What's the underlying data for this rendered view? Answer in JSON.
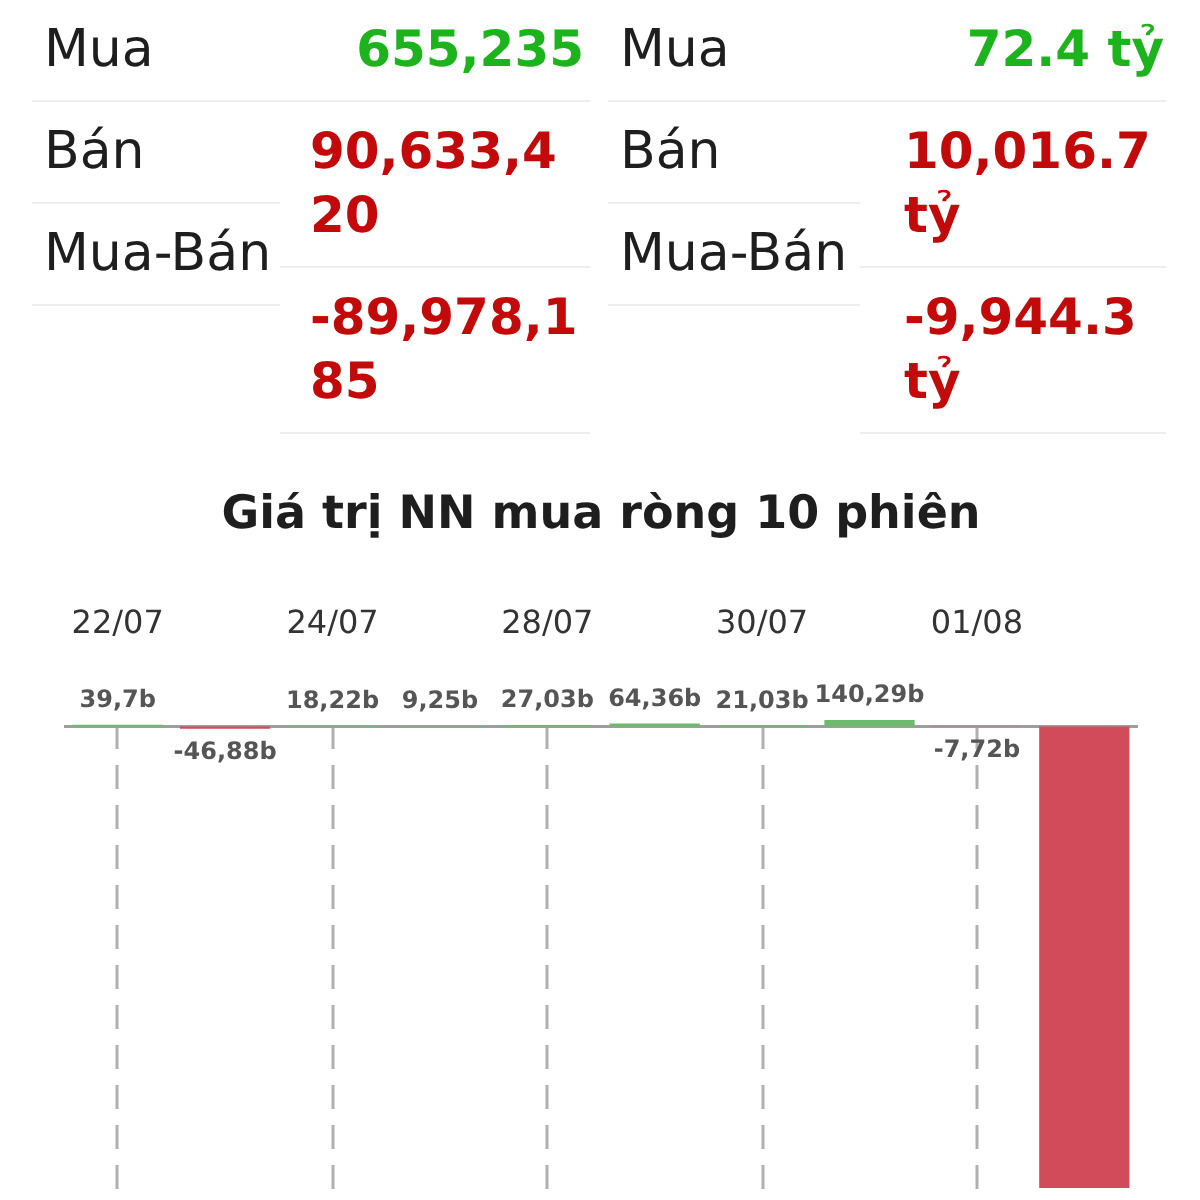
{
  "chart_data": [
    {
      "type": "other",
      "annotations": [
        "Mua",
        "655,235",
        "Bán",
        "90,633,420",
        "Mua-Bán",
        "-89,978,185",
        "Mua",
        "72.4 tỷ",
        "Bán",
        "10,016.7 tỷ",
        "Mua-Bán",
        "-9,944.3 tỷ"
      ],
      "colors": [
        "#1e1e1e",
        "#1db31d",
        "#1e1e1e",
        "#c20a0a",
        "#1e1e1e",
        "#c20a0a",
        "#1e1e1e",
        "#1db31d",
        "#1e1e1e",
        "#c20a0a",
        "#1e1e1e",
        "#c20a0a"
      ]
    },
    {
      "type": "bar",
      "title": "Giá trị NN mua ròng 10 phiên",
      "categories": [
        "22/07",
        null,
        "24/07",
        null,
        "28/07",
        null,
        "30/07",
        null,
        "01/08",
        null
      ],
      "values": [
        39.7,
        -46.88,
        18.22,
        9.25,
        27.03,
        64.36,
        21.03,
        140.29,
        -7.72,
        -9944.3
      ],
      "value_labels": [
        "39,7b",
        "-46,88b",
        "18,22b",
        "9,25b",
        "27,03b",
        "64,36b",
        "21,03b",
        "140,29b",
        "-7,72b",
        null
      ],
      "colors": [
        "#6cba6c",
        "#d24b5a",
        "#6cba6c",
        "#6cba6c",
        "#6cba6c",
        "#6cba6c",
        "#6cba6c",
        "#6cba6c",
        "#d24b5a",
        "#d24b5a"
      ],
      "grid": "x",
      "ref_lines": [
        {
          "axis": "y",
          "value": 0,
          "color": "#9e9e9e"
        }
      ]
    }
  ]
}
